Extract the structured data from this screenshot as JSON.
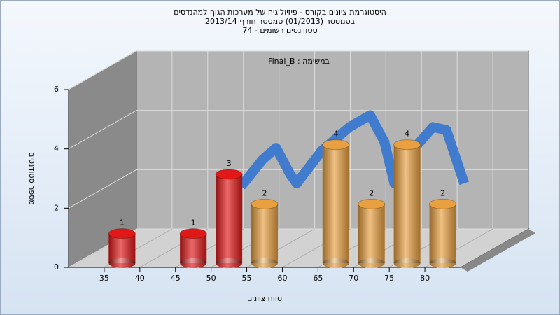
{
  "chart_data": {
    "type": "bar",
    "title": [
      "היסטוגרמת ציונים בקורס - פיזיולוגיה של מערכות הגוף למהנדסים",
      "בסמסטר  (01/2013)  סמסטר חורף 2013/14",
      "סטודנטים רשומים - 74"
    ],
    "subtitle": "במשימה : Final_B",
    "xlabel": "טווח ציונים",
    "ylabel": "מספר סטודנטים",
    "x": [
      37.5,
      47.5,
      52.5,
      57.5,
      67.5,
      72.5,
      77.5,
      82.5
    ],
    "values": [
      1,
      1,
      3,
      2,
      4,
      2,
      4,
      2
    ],
    "colors": [
      "#e01818",
      "#e01818",
      "#e01818",
      "#e8a040",
      "#e8a040",
      "#e8a040",
      "#e8a040",
      "#e8a040"
    ],
    "xlim": [
      30,
      85
    ],
    "xticks": [
      35,
      40,
      45,
      50,
      55,
      60,
      65,
      70,
      75,
      80
    ],
    "ylim": [
      0,
      6
    ],
    "yticks": [
      0,
      2,
      4,
      6
    ],
    "grid": true,
    "line": {
      "color": "#3a78d0",
      "x": [
        49.5,
        52.5,
        54.4,
        56.4,
        57.3,
        60.8,
        64.7,
        67.6,
        69.6,
        71.0,
        73.5,
        76.4,
        78.3,
        80.8
      ],
      "values": [
        2.1,
        3.0,
        3.4,
        2.5,
        2.2,
        3.3,
        4.1,
        4.5,
        3.6,
        2.2,
        3.3,
        4.1,
        4.0,
        2.2
      ]
    }
  }
}
